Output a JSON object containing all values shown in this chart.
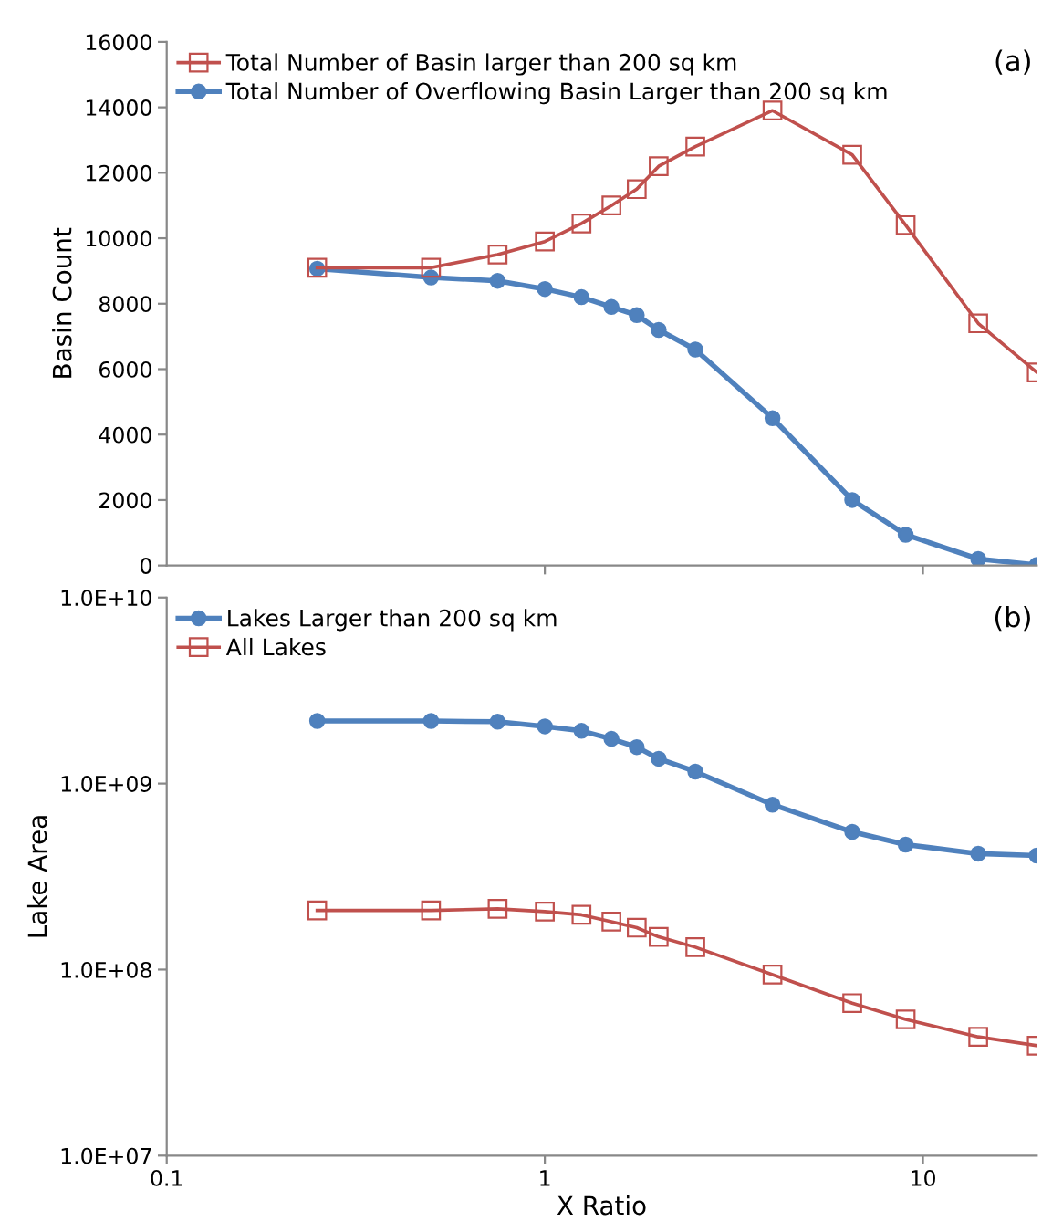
{
  "chart_data": [
    {
      "type": "line",
      "ylabel": "Basin Count",
      "annotations": [
        "(a)"
      ],
      "x": [
        0.25,
        0.5,
        0.75,
        1,
        1.25,
        1.5,
        1.75,
        2,
        2.5,
        4,
        6.5,
        9,
        14,
        20
      ],
      "series": [
        {
          "name": "Total Number of Basin larger than 200 sq km",
          "color": "#c0504d",
          "marker": "square",
          "values": [
            9100,
            9100,
            9500,
            9900,
            10450,
            11000,
            11500,
            12200,
            12800,
            13900,
            12550,
            10400,
            7400,
            5900
          ]
        },
        {
          "name": "Total Number of Overflowing Basin Larger than 200 sq km",
          "color": "#4f81bd",
          "marker": "circle",
          "values": [
            9070,
            8800,
            8700,
            8450,
            8200,
            7900,
            7650,
            7200,
            6600,
            4500,
            2000,
            940,
            200,
            20
          ]
        }
      ],
      "log": "x",
      "xlim": [
        0.1,
        20
      ],
      "xticks": [
        {
          "value": 1,
          "label": null
        },
        {
          "value": 10,
          "label": null
        }
      ],
      "ylim": [
        0,
        16000
      ],
      "yticks": [
        0,
        2000,
        4000,
        6000,
        8000,
        10000,
        12000,
        14000,
        16000
      ],
      "tick_labels": "y",
      "grid": false,
      "legend": "top left"
    },
    {
      "type": "line",
      "xlabel": "X Ratio",
      "ylabel": "Lake Area",
      "annotations": [
        "(b)"
      ],
      "x": [
        0.25,
        0.5,
        0.75,
        1,
        1.25,
        1.5,
        1.75,
        2,
        2.5,
        4,
        6.5,
        9,
        14,
        20
      ],
      "series": [
        {
          "name": "Lakes Larger than 200 sq km",
          "color": "#4f81bd",
          "marker": "circle",
          "values": [
            2170000000.0,
            2170000000.0,
            2150000000.0,
            2030000000.0,
            1920000000.0,
            1740000000.0,
            1570000000.0,
            1360000000.0,
            1160000000.0,
            770000000.0,
            550000000.0,
            470000000.0,
            420000000.0,
            410000000.0
          ]
        },
        {
          "name": "All Lakes",
          "color": "#c0504d",
          "marker": "square",
          "values": [
            208000000.0,
            208000000.0,
            212000000.0,
            205000000.0,
            197000000.0,
            181000000.0,
            168000000.0,
            150000000.0,
            132000000.0,
            94000000.0,
            66000000.0,
            54000000.0,
            43500000.0,
            39000000.0
          ]
        }
      ],
      "log": "xy",
      "xlim": [
        0.1,
        20
      ],
      "xticks": [
        0.1,
        1,
        10
      ],
      "ylim": [
        10000000.0,
        10000000000.0
      ],
      "yticks": [
        {
          "value": 10000000.0,
          "label": "1.0E+07"
        },
        {
          "value": 100000000.0,
          "label": "1.0E+08"
        },
        {
          "value": 1000000000.0,
          "label": "1.0E+09"
        },
        {
          "value": 10000000000.0,
          "label": "1.0E+10"
        }
      ],
      "grid": false,
      "legend": "top left"
    }
  ]
}
